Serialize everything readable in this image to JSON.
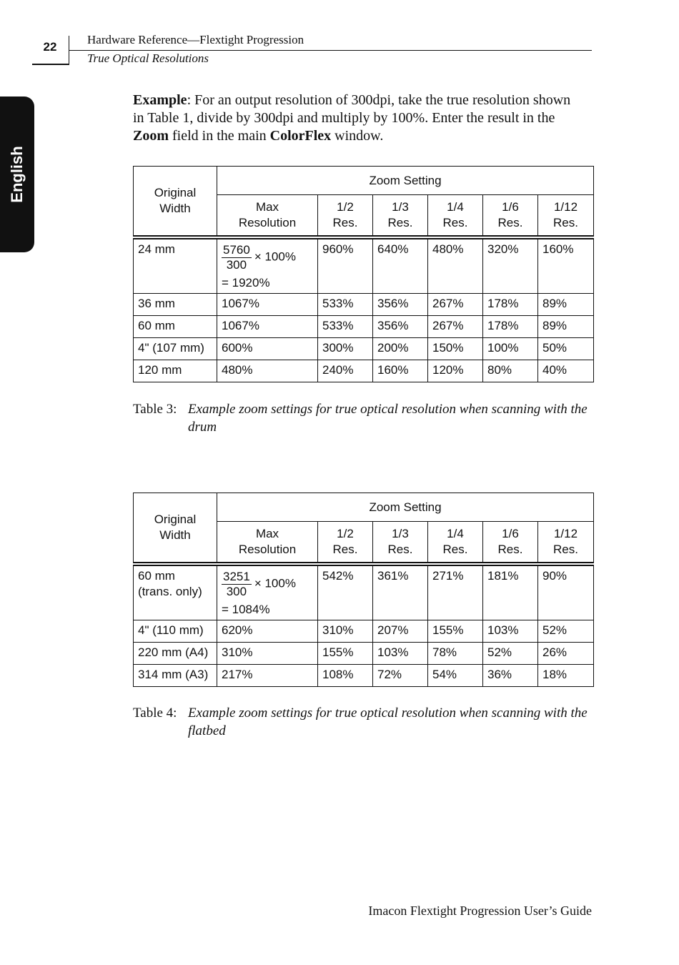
{
  "header": {
    "page_number": "22",
    "title": "Hardware Reference—Flextight Progression",
    "subtitle": "True Optical Resolutions"
  },
  "side_tab": "English",
  "intro": {
    "runs": [
      {
        "text": "Example",
        "bold": true
      },
      {
        "text": ": For an output resolution of 300dpi, take the true resolution shown in Table 1, divide by 300dpi and multiply by 100%. Enter the result in the ",
        "bold": false
      },
      {
        "text": "Zoom",
        "bold": true
      },
      {
        "text": " field in the main ",
        "bold": false
      },
      {
        "text": "ColorFlex",
        "bold": true
      },
      {
        "text": " window.",
        "bold": false
      }
    ]
  },
  "tables": [
    {
      "header": {
        "original_width": [
          "Original",
          "Width"
        ],
        "zoom_setting": "Zoom Setting",
        "columns": [
          [
            "Max",
            "Resolution"
          ],
          [
            "1/2",
            "Res."
          ],
          [
            "1/3",
            "Res."
          ],
          [
            "1/4",
            "Res."
          ],
          [
            "1/6",
            "Res."
          ],
          [
            "1/12",
            "Res."
          ]
        ]
      },
      "rows": [
        {
          "width": [
            "24 mm"
          ],
          "max": {
            "numerator": "5760",
            "denominator": "300",
            "factor": "× 100%",
            "result": "= 1920%"
          },
          "cells": [
            "960%",
            "640%",
            "480%",
            "320%",
            "160%"
          ]
        },
        {
          "width": [
            "36 mm"
          ],
          "max": "1067%",
          "cells": [
            "533%",
            "356%",
            "267%",
            "178%",
            "89%"
          ]
        },
        {
          "width": [
            "60 mm"
          ],
          "max": "1067%",
          "cells": [
            "533%",
            "356%",
            "267%",
            "178%",
            "89%"
          ]
        },
        {
          "width": [
            "4\" (107 mm)"
          ],
          "max": "600%",
          "cells": [
            "300%",
            "200%",
            "150%",
            "100%",
            "50%"
          ]
        },
        {
          "width": [
            "120 mm"
          ],
          "max": "480%",
          "cells": [
            "240%",
            "160%",
            "120%",
            "80%",
            "40%"
          ]
        }
      ],
      "caption": {
        "label": "Table 3:",
        "text": "Example zoom settings for true optical resolution when scanning with the drum"
      }
    },
    {
      "header": {
        "original_width": [
          "Original",
          "Width"
        ],
        "zoom_setting": "Zoom Setting",
        "columns": [
          [
            "Max",
            "Resolution"
          ],
          [
            "1/2",
            "Res."
          ],
          [
            "1/3",
            "Res."
          ],
          [
            "1/4",
            "Res."
          ],
          [
            "1/6",
            "Res."
          ],
          [
            "1/12",
            "Res."
          ]
        ]
      },
      "rows": [
        {
          "width": [
            "60 mm",
            "(trans. only)"
          ],
          "max": {
            "numerator": "3251",
            "denominator": "300",
            "factor": "× 100%",
            "result": "= 1084%"
          },
          "cells": [
            "542%",
            "361%",
            "271%",
            "181%",
            "90%"
          ]
        },
        {
          "width": [
            "4\" (110 mm)"
          ],
          "max": "620%",
          "cells": [
            "310%",
            "207%",
            "155%",
            "103%",
            "52%"
          ]
        },
        {
          "width": [
            "220 mm (A4)"
          ],
          "max": "310%",
          "cells": [
            "155%",
            "103%",
            "78%",
            "52%",
            "26%"
          ]
        },
        {
          "width": [
            "314 mm (A3)"
          ],
          "max": "217%",
          "cells": [
            "108%",
            "72%",
            "54%",
            "36%",
            "18%"
          ]
        }
      ],
      "caption": {
        "label": "Table 4:",
        "text": "Example zoom settings for true optical resolution when scanning with the flatbed"
      }
    }
  ],
  "footer": "Imacon Flextight Progression User’s Guide"
}
